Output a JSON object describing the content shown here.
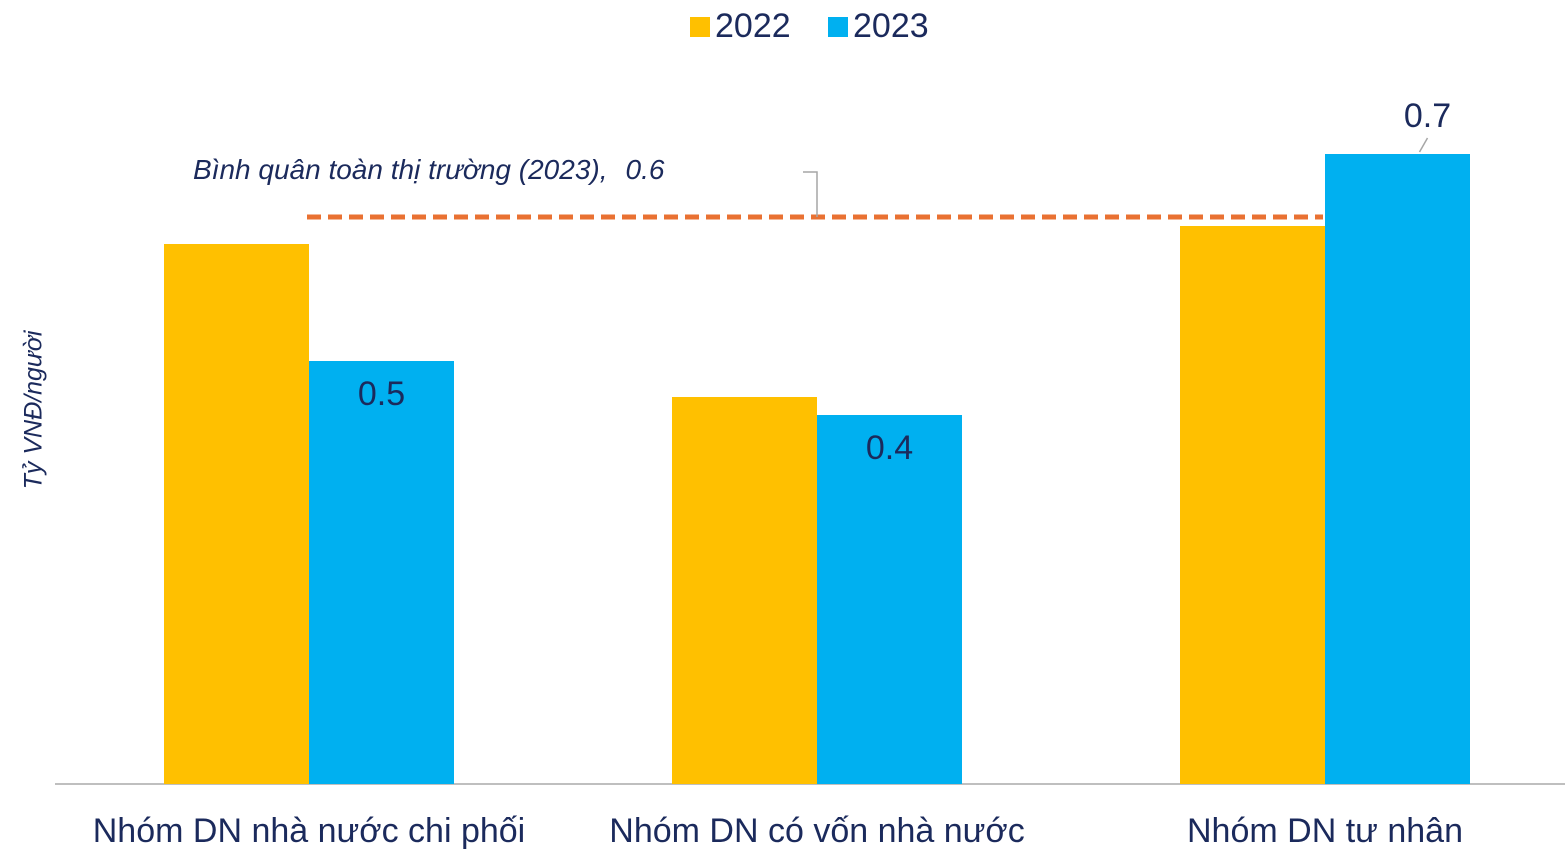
{
  "chart_data": {
    "type": "bar",
    "y_label": "Tỷ VNĐ/người",
    "categories": [
      "Nhóm DN nhà nước chi phối",
      "Nhóm DN có vốn nhà nước",
      "Nhóm DN tư nhân"
    ],
    "series": [
      {
        "name": "2022",
        "color": "#ffc000",
        "values": [
          0.6,
          0.43,
          0.62
        ]
      },
      {
        "name": "2023",
        "color": "#00b0f0",
        "values": [
          0.47,
          0.41,
          0.7
        ],
        "value_labels": [
          "0.5",
          "0.4",
          "0.7"
        ]
      }
    ],
    "reference_line": {
      "label": "Bình quân toàn thị trường (2023),",
      "value": 0.63,
      "value_label": "0.6",
      "color": "#e97132"
    },
    "ylim": [
      0,
      0.8
    ],
    "legend": "top"
  }
}
